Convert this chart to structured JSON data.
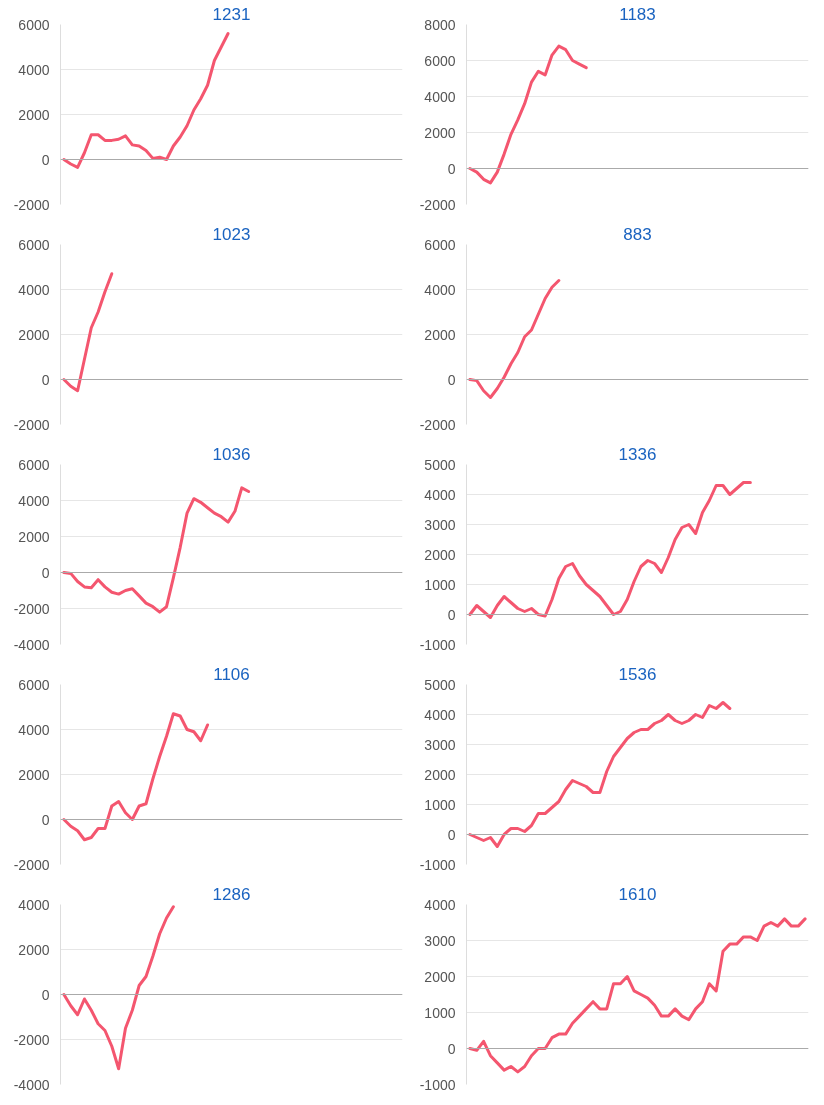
{
  "chart_data": [
    {
      "type": "line",
      "title": "1231",
      "categories": [
        null,
        null,
        null,
        null,
        null,
        null,
        null,
        null,
        null,
        null,
        null,
        null,
        null,
        null,
        null,
        null,
        null,
        null,
        null,
        null,
        null,
        null,
        null,
        null,
        null,
        null,
        null,
        null,
        null,
        null,
        null,
        null,
        null,
        null,
        null,
        null,
        null,
        null,
        null,
        null,
        null,
        null,
        null,
        null,
        null,
        null,
        null,
        null,
        null,
        null
      ],
      "series": [
        {
          "color": "#f4566f",
          "values": [
            0,
            -200,
            -350,
            300,
            1100,
            1100,
            850,
            850,
            900,
            1050,
            650,
            600,
            400,
            50,
            100,
            0,
            600,
            1000,
            1500,
            2200,
            2700,
            3300,
            4400,
            5000,
            5600,
            null,
            null,
            null,
            null,
            null,
            null,
            null,
            null,
            null,
            null,
            null,
            null,
            null,
            null,
            null,
            null,
            null,
            null,
            null,
            null,
            null,
            null,
            null,
            null,
            null
          ]
        }
      ],
      "ylim": [
        -2000,
        6000
      ],
      "yticks": [
        -2000,
        0,
        2000,
        4000,
        6000
      ],
      "grid": "y",
      "tick_labels": "y",
      "ref_lines": [
        {
          "axis": "y",
          "value": 0,
          "color": "#aaaaaa"
        }
      ]
    },
    {
      "type": "line",
      "title": "1183",
      "categories": [
        null,
        null,
        null,
        null,
        null,
        null,
        null,
        null,
        null,
        null,
        null,
        null,
        null,
        null,
        null,
        null,
        null,
        null,
        null,
        null,
        null,
        null,
        null,
        null,
        null,
        null,
        null,
        null,
        null,
        null,
        null,
        null,
        null,
        null,
        null,
        null,
        null,
        null,
        null,
        null,
        null,
        null,
        null,
        null,
        null,
        null,
        null,
        null,
        null,
        null
      ],
      "series": [
        {
          "color": "#f4566f",
          "values": [
            0,
            -200,
            -600,
            -800,
            -200,
            800,
            1900,
            2700,
            3600,
            4800,
            5400,
            5200,
            6300,
            6800,
            6600,
            6000,
            5800,
            5600,
            null,
            null,
            null,
            null,
            null,
            null,
            null,
            null,
            null,
            null,
            null,
            null,
            null,
            null,
            null,
            null,
            null,
            null,
            null,
            null,
            null,
            null,
            null,
            null,
            null,
            null,
            null,
            null,
            null,
            null,
            null,
            null
          ]
        }
      ],
      "ylim": [
        -2000,
        8000
      ],
      "yticks": [
        -2000,
        0,
        2000,
        4000,
        6000,
        8000
      ],
      "grid": "y",
      "tick_labels": "y",
      "ref_lines": [
        {
          "axis": "y",
          "value": 0,
          "color": "#aaaaaa"
        }
      ]
    },
    {
      "type": "line",
      "title": "1023",
      "categories": [
        null,
        null,
        null,
        null,
        null,
        null,
        null,
        null,
        null,
        null,
        null,
        null,
        null,
        null,
        null,
        null,
        null,
        null,
        null,
        null,
        null,
        null,
        null,
        null,
        null,
        null,
        null,
        null,
        null,
        null,
        null,
        null,
        null,
        null,
        null,
        null,
        null,
        null,
        null,
        null,
        null,
        null,
        null,
        null,
        null,
        null,
        null,
        null,
        null,
        null
      ],
      "series": [
        {
          "color": "#f4566f",
          "values": [
            0,
            -300,
            -500,
            900,
            2300,
            3000,
            3900,
            4700,
            null,
            null,
            null,
            null,
            null,
            null,
            null,
            null,
            null,
            null,
            null,
            null,
            null,
            null,
            null,
            null,
            null,
            null,
            null,
            null,
            null,
            null,
            null,
            null,
            null,
            null,
            null,
            null,
            null,
            null,
            null,
            null,
            null,
            null,
            null,
            null,
            null,
            null,
            null,
            null,
            null,
            null
          ]
        }
      ],
      "ylim": [
        -2000,
        6000
      ],
      "yticks": [
        -2000,
        0,
        2000,
        4000,
        6000
      ],
      "grid": "y",
      "tick_labels": "y",
      "ref_lines": [
        {
          "axis": "y",
          "value": 0,
          "color": "#aaaaaa"
        }
      ]
    },
    {
      "type": "line",
      "title": "883",
      "categories": [
        null,
        null,
        null,
        null,
        null,
        null,
        null,
        null,
        null,
        null,
        null,
        null,
        null,
        null,
        null,
        null,
        null,
        null,
        null,
        null,
        null,
        null,
        null,
        null,
        null,
        null,
        null,
        null,
        null,
        null,
        null,
        null,
        null,
        null,
        null,
        null,
        null,
        null,
        null,
        null,
        null,
        null,
        null,
        null,
        null,
        null,
        null,
        null,
        null,
        null
      ],
      "series": [
        {
          "color": "#f4566f",
          "values": [
            0,
            -50,
            -500,
            -800,
            -400,
            100,
            700,
            1200,
            1900,
            2200,
            2900,
            3600,
            4100,
            4400,
            null,
            null,
            null,
            null,
            null,
            null,
            null,
            null,
            null,
            null,
            null,
            null,
            null,
            null,
            null,
            null,
            null,
            null,
            null,
            null,
            null,
            null,
            null,
            null,
            null,
            null,
            null,
            null,
            null,
            null,
            null,
            null,
            null,
            null,
            null,
            null
          ]
        }
      ],
      "ylim": [
        -2000,
        6000
      ],
      "yticks": [
        -2000,
        0,
        2000,
        4000,
        6000
      ],
      "grid": "y",
      "tick_labels": "y",
      "ref_lines": [
        {
          "axis": "y",
          "value": 0,
          "color": "#aaaaaa"
        }
      ]
    },
    {
      "type": "line",
      "title": "1036",
      "categories": [
        null,
        null,
        null,
        null,
        null,
        null,
        null,
        null,
        null,
        null,
        null,
        null,
        null,
        null,
        null,
        null,
        null,
        null,
        null,
        null,
        null,
        null,
        null,
        null,
        null,
        null,
        null,
        null,
        null,
        null,
        null,
        null,
        null,
        null,
        null,
        null,
        null,
        null,
        null,
        null,
        null,
        null,
        null,
        null,
        null,
        null,
        null,
        null,
        null,
        null
      ],
      "series": [
        {
          "color": "#f4566f",
          "values": [
            0,
            -50,
            -500,
            -800,
            -850,
            -400,
            -800,
            -1100,
            -1200,
            -1000,
            -900,
            -1300,
            -1700,
            -1900,
            -2200,
            -1900,
            -300,
            1400,
            3300,
            4100,
            3900,
            3600,
            3300,
            3100,
            2800,
            3400,
            4700,
            4500,
            null,
            null,
            null,
            null,
            null,
            null,
            null,
            null,
            null,
            null,
            null,
            null,
            null,
            null,
            null,
            null,
            null,
            null,
            null,
            null,
            null,
            null
          ]
        }
      ],
      "ylim": [
        -4000,
        6000
      ],
      "yticks": [
        -4000,
        -2000,
        0,
        2000,
        4000,
        6000
      ],
      "grid": "y",
      "tick_labels": "y",
      "ref_lines": [
        {
          "axis": "y",
          "value": 0,
          "color": "#aaaaaa"
        }
      ]
    },
    {
      "type": "line",
      "title": "1336",
      "categories": [
        null,
        null,
        null,
        null,
        null,
        null,
        null,
        null,
        null,
        null,
        null,
        null,
        null,
        null,
        null,
        null,
        null,
        null,
        null,
        null,
        null,
        null,
        null,
        null,
        null,
        null,
        null,
        null,
        null,
        null,
        null,
        null,
        null,
        null,
        null,
        null,
        null,
        null,
        null,
        null,
        null,
        null,
        null,
        null,
        null,
        null,
        null,
        null,
        null,
        null
      ],
      "series": [
        {
          "color": "#f4566f",
          "values": [
            0,
            300,
            100,
            -100,
            300,
            600,
            400,
            200,
            100,
            200,
            0,
            -50,
            500,
            1200,
            1600,
            1700,
            1300,
            1000,
            800,
            600,
            300,
            0,
            100,
            500,
            1100,
            1600,
            1800,
            1700,
            1400,
            1900,
            2500,
            2900,
            3000,
            2700,
            3400,
            3800,
            4300,
            4300,
            4000,
            4200,
            4400,
            4400,
            null,
            null,
            null,
            null,
            null,
            null,
            null,
            null
          ]
        }
      ],
      "ylim": [
        -1000,
        5000
      ],
      "yticks": [
        -1000,
        0,
        1000,
        2000,
        3000,
        4000,
        5000
      ],
      "grid": "y",
      "tick_labels": "y",
      "ref_lines": [
        {
          "axis": "y",
          "value": 0,
          "color": "#aaaaaa"
        }
      ]
    },
    {
      "type": "line",
      "title": "1106",
      "categories": [
        null,
        null,
        null,
        null,
        null,
        null,
        null,
        null,
        null,
        null,
        null,
        null,
        null,
        null,
        null,
        null,
        null,
        null,
        null,
        null,
        null,
        null,
        null,
        null,
        null,
        null,
        null,
        null,
        null,
        null,
        null,
        null,
        null,
        null,
        null,
        null,
        null,
        null,
        null,
        null,
        null,
        null,
        null,
        null,
        null,
        null,
        null,
        null,
        null,
        null
      ],
      "series": [
        {
          "color": "#f4566f",
          "values": [
            0,
            -300,
            -500,
            -900,
            -800,
            -400,
            -400,
            600,
            800,
            300,
            0,
            600,
            700,
            1800,
            2800,
            3700,
            4700,
            4600,
            4000,
            3900,
            3500,
            4200,
            null,
            null,
            null,
            null,
            null,
            null,
            null,
            null,
            null,
            null,
            null,
            null,
            null,
            null,
            null,
            null,
            null,
            null,
            null,
            null,
            null,
            null,
            null,
            null,
            null,
            null,
            null,
            null
          ]
        }
      ],
      "ylim": [
        -2000,
        6000
      ],
      "yticks": [
        -2000,
        0,
        2000,
        4000,
        6000
      ],
      "grid": "y",
      "tick_labels": "y",
      "ref_lines": [
        {
          "axis": "y",
          "value": 0,
          "color": "#aaaaaa"
        }
      ]
    },
    {
      "type": "line",
      "title": "1536",
      "categories": [
        null,
        null,
        null,
        null,
        null,
        null,
        null,
        null,
        null,
        null,
        null,
        null,
        null,
        null,
        null,
        null,
        null,
        null,
        null,
        null,
        null,
        null,
        null,
        null,
        null,
        null,
        null,
        null,
        null,
        null,
        null,
        null,
        null,
        null,
        null,
        null,
        null,
        null,
        null,
        null,
        null,
        null,
        null,
        null,
        null,
        null,
        null,
        null,
        null,
        null
      ],
      "series": [
        {
          "color": "#f4566f",
          "values": [
            0,
            -100,
            -200,
            -100,
            -400,
            0,
            200,
            200,
            100,
            300,
            700,
            700,
            900,
            1100,
            1500,
            1800,
            1700,
            1600,
            1400,
            1400,
            2100,
            2600,
            2900,
            3200,
            3400,
            3500,
            3500,
            3700,
            3800,
            4000,
            3800,
            3700,
            3800,
            4000,
            3900,
            4300,
            4200,
            4400,
            4200,
            null,
            null,
            null,
            null,
            null,
            null,
            null,
            null,
            null,
            null,
            null
          ]
        }
      ],
      "ylim": [
        -1000,
        5000
      ],
      "yticks": [
        -1000,
        0,
        1000,
        2000,
        3000,
        4000,
        5000
      ],
      "grid": "y",
      "tick_labels": "y",
      "ref_lines": [
        {
          "axis": "y",
          "value": 0,
          "color": "#aaaaaa"
        }
      ]
    },
    {
      "type": "line",
      "title": "1286",
      "categories": [
        null,
        null,
        null,
        null,
        null,
        null,
        null,
        null,
        null,
        null,
        null,
        null,
        null,
        null,
        null,
        null,
        null,
        null,
        null,
        null,
        null,
        null,
        null,
        null,
        null,
        null,
        null,
        null,
        null,
        null,
        null,
        null,
        null,
        null,
        null,
        null,
        null,
        null,
        null,
        null,
        null,
        null,
        null,
        null,
        null,
        null,
        null,
        null,
        null,
        null
      ],
      "series": [
        {
          "color": "#f4566f",
          "values": [
            0,
            -500,
            -900,
            -200,
            -700,
            -1300,
            -1600,
            -2300,
            -3300,
            -1500,
            -700,
            400,
            800,
            1700,
            2700,
            3400,
            3900,
            null,
            null,
            null,
            null,
            null,
            null,
            null,
            null,
            null,
            null,
            null,
            null,
            null,
            null,
            null,
            null,
            null,
            null,
            null,
            null,
            null,
            null,
            null,
            null,
            null,
            null,
            null,
            null,
            null,
            null,
            null,
            null,
            null
          ]
        }
      ],
      "ylim": [
        -4000,
        4000
      ],
      "yticks": [
        -4000,
        -2000,
        0,
        2000,
        4000
      ],
      "grid": "y",
      "tick_labels": "y",
      "ref_lines": [
        {
          "axis": "y",
          "value": 0,
          "color": "#aaaaaa"
        }
      ]
    },
    {
      "type": "line",
      "title": "1610",
      "categories": [
        null,
        null,
        null,
        null,
        null,
        null,
        null,
        null,
        null,
        null,
        null,
        null,
        null,
        null,
        null,
        null,
        null,
        null,
        null,
        null,
        null,
        null,
        null,
        null,
        null,
        null,
        null,
        null,
        null,
        null,
        null,
        null,
        null,
        null,
        null,
        null,
        null,
        null,
        null,
        null,
        null,
        null,
        null,
        null,
        null,
        null,
        null,
        null,
        null,
        null
      ],
      "series": [
        {
          "color": "#f4566f",
          "values": [
            0,
            -50,
            200,
            -200,
            -400,
            -600,
            -500,
            -650,
            -500,
            -200,
            0,
            0,
            300,
            400,
            400,
            700,
            900,
            1100,
            1300,
            1100,
            1100,
            1800,
            1800,
            2000,
            1600,
            1500,
            1400,
            1200,
            900,
            900,
            1100,
            900,
            800,
            1100,
            1300,
            1800,
            1600,
            2700,
            2900,
            2900,
            3100,
            3100,
            3000,
            3400,
            3500,
            3400,
            3600,
            3400,
            3400,
            3600
          ]
        }
      ],
      "ylim": [
        -1000,
        4000
      ],
      "yticks": [
        -1000,
        0,
        1000,
        2000,
        3000,
        4000
      ],
      "grid": "y",
      "tick_labels": "y",
      "ref_lines": [
        {
          "axis": "y",
          "value": 0,
          "color": "#aaaaaa"
        }
      ]
    }
  ]
}
